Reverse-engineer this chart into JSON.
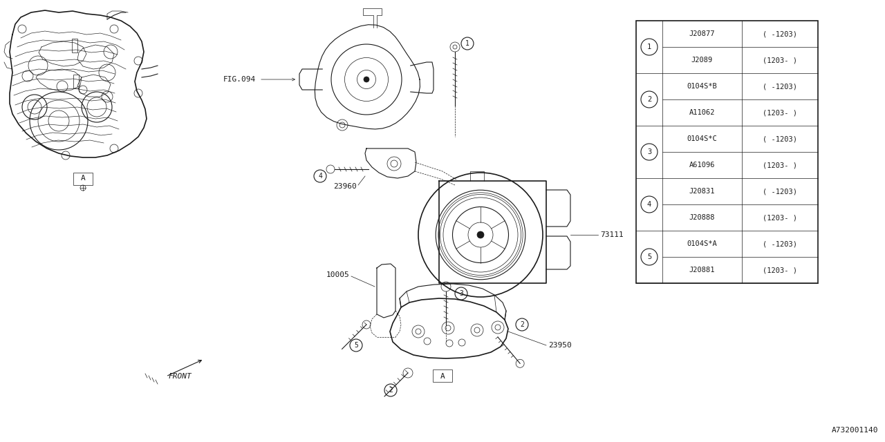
{
  "bg_color": "#ffffff",
  "line_color": "#1a1a1a",
  "diagram_id": "A732001140",
  "fig_ref": "FIG.094",
  "table": {
    "items": [
      {
        "num": 1,
        "parts": [
          [
            "J20877",
            "( -1203)"
          ],
          [
            "J2089",
            "(1203- )"
          ]
        ]
      },
      {
        "num": 2,
        "parts": [
          [
            "0104S*B",
            "( -1203)"
          ],
          [
            "A11062",
            "(1203- )"
          ]
        ]
      },
      {
        "num": 3,
        "parts": [
          [
            "0104S*C",
            "( -1203)"
          ],
          [
            "A61096",
            "(1203- )"
          ]
        ]
      },
      {
        "num": 4,
        "parts": [
          [
            "J20831",
            "( -1203)"
          ],
          [
            "J20888",
            "(1203- )"
          ]
        ]
      },
      {
        "num": 5,
        "parts": [
          [
            "0104S*A",
            "( -1203)"
          ],
          [
            "J20881",
            "(1203- )"
          ]
        ]
      }
    ]
  }
}
